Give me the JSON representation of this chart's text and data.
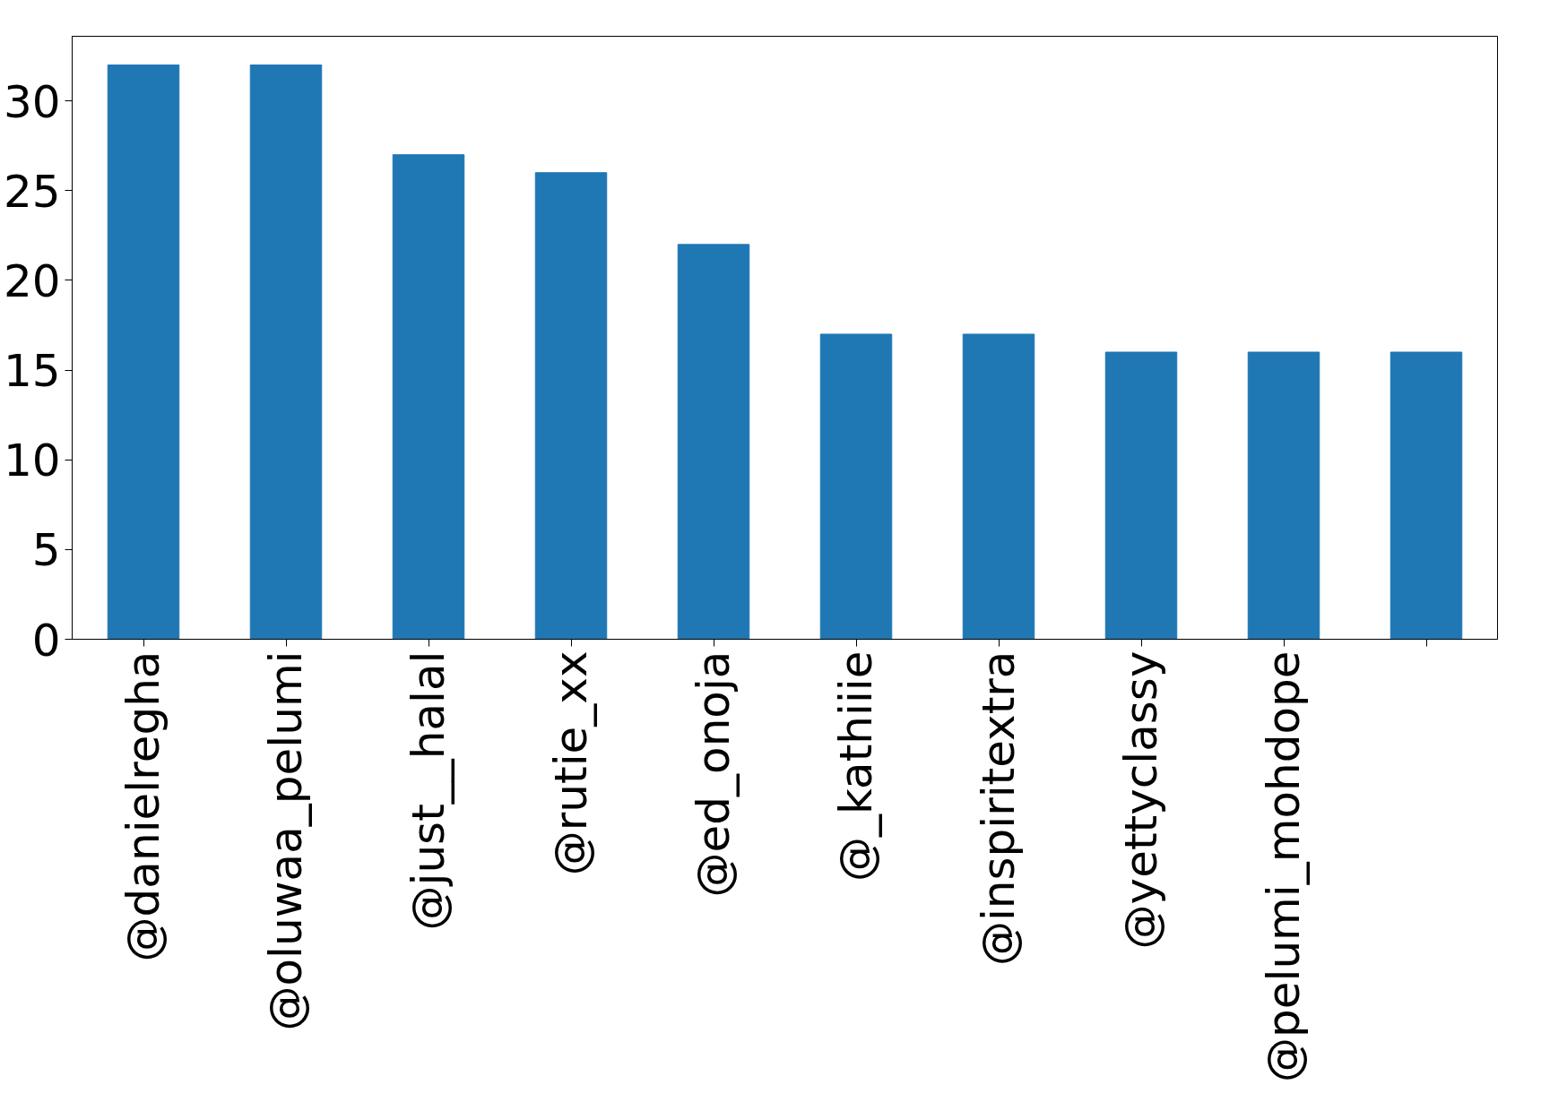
{
  "chart_data": {
    "type": "bar",
    "categories": [
      "@danielregha",
      "@oluwaa_pelumi",
      "@just__halal",
      "@rutie_xx",
      "@ed_onoja",
      "@_kathiiie",
      "@inspiritextra",
      "@yettyclassy",
      "@pelumi_mohdope",
      null
    ],
    "values": [
      32,
      32,
      27,
      26,
      22,
      17,
      17,
      16,
      16,
      16
    ],
    "color": "#1f77b4",
    "ylim": [
      0,
      33.6
    ],
    "yticks": [
      0,
      5,
      10,
      15,
      20,
      25,
      30
    ],
    "grid": false
  }
}
